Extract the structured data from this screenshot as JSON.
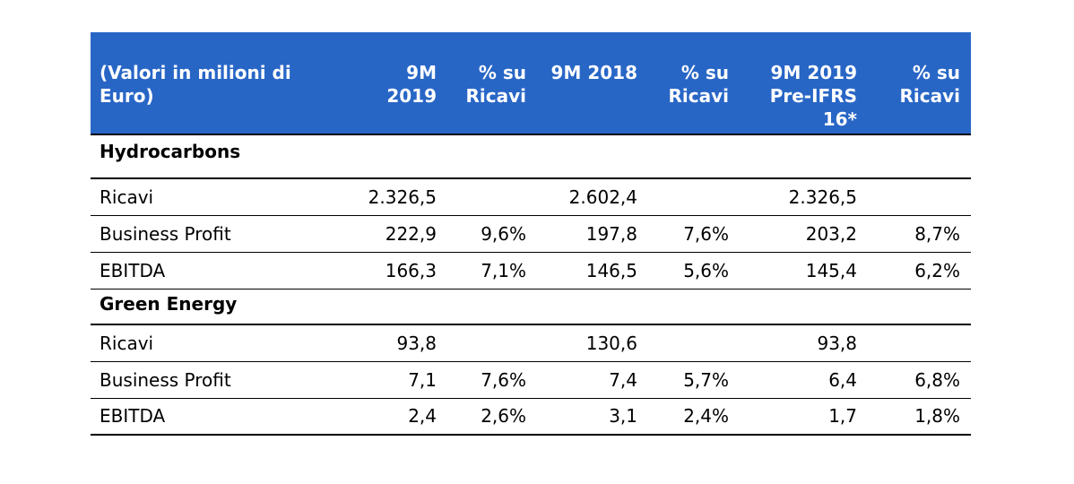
{
  "table": {
    "headers": [
      "(Valori in milioni di Euro)",
      "9M 2019",
      "% su Ricavi",
      "9M 2018",
      "% su Ricavi",
      "9M 2019 Pre-IFRS 16*",
      "% su Ricavi"
    ],
    "sections": [
      {
        "title": "Hydrocarbons",
        "rows": [
          [
            "Ricavi",
            "2.326,5",
            "",
            "2.602,4",
            "",
            "2.326,5",
            ""
          ],
          [
            "Business Profit",
            "222,9",
            "9,6%",
            "197,8",
            "7,6%",
            "203,2",
            "8,7%"
          ],
          [
            "EBITDA",
            "166,3",
            "7,1%",
            "146,5",
            "5,6%",
            "145,4",
            "6,2%"
          ]
        ]
      },
      {
        "title": "Green Energy",
        "rows": [
          [
            "Ricavi",
            "93,8",
            "",
            "130,6",
            "",
            "93,8",
            ""
          ],
          [
            "Business Profit",
            "7,1",
            "7,6%",
            "7,4",
            "5,7%",
            "6,4",
            "6,8%"
          ],
          [
            "EBITDA",
            "2,4",
            "2,6%",
            "3,1",
            "2,4%",
            "1,7",
            "1,8%"
          ]
        ]
      }
    ]
  }
}
